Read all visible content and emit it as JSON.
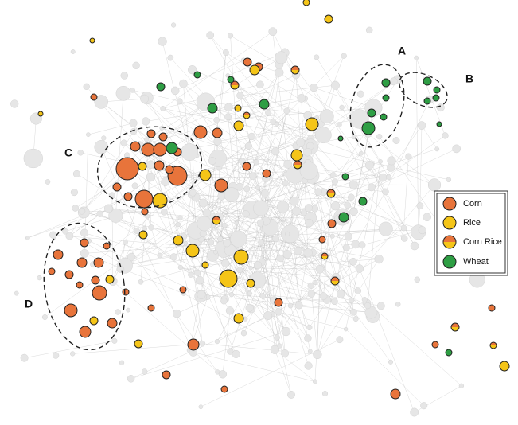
{
  "clusters": [
    {
      "label": "A"
    },
    {
      "label": "B"
    },
    {
      "label": "C"
    },
    {
      "label": "D"
    }
  ],
  "legend": {
    "items": [
      {
        "label": "Corn"
      },
      {
        "label": "Rice"
      },
      {
        "label": "Corn Rice"
      },
      {
        "label": "Wheat"
      }
    ]
  }
}
